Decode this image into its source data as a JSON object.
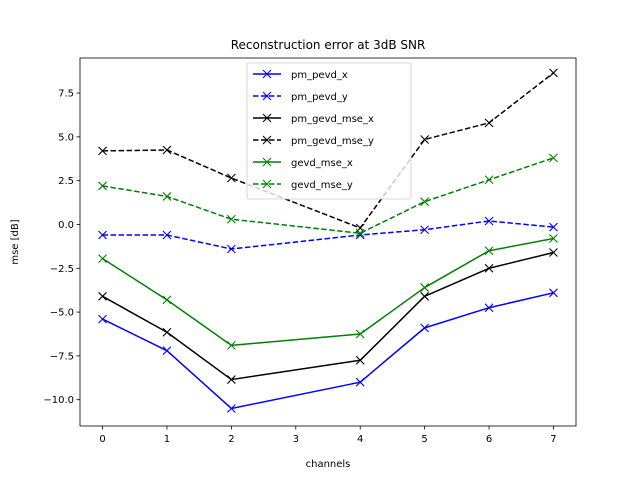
{
  "chart_data": {
    "type": "line",
    "title": "Reconstruction error at 3dB SNR",
    "xlabel": "channels",
    "ylabel": "mse [dB]",
    "x": [
      0,
      1,
      2,
      4,
      5,
      6,
      7
    ],
    "xlim": [
      -0.35,
      7.35
    ],
    "ylim": [
      -11.5,
      9.5
    ],
    "xticks": [
      0,
      1,
      2,
      3,
      4,
      5,
      6,
      7
    ],
    "yticks": [
      -10.0,
      -7.5,
      -5.0,
      -2.5,
      0.0,
      2.5,
      5.0,
      7.5
    ],
    "ytick_labels": [
      "−10.0",
      "−7.5",
      "−5.0",
      "−2.5",
      "0.0",
      "2.5",
      "5.0",
      "7.5"
    ],
    "grid": false,
    "legend_position": "top-center",
    "marker": "x",
    "series": [
      {
        "name": "pm_pevd_x",
        "color": "#0000ff",
        "dash": "solid",
        "values": [
          -5.4,
          -7.2,
          -10.5,
          -9.0,
          -5.9,
          -4.75,
          -3.9
        ]
      },
      {
        "name": "pm_pevd_y",
        "color": "#0000ff",
        "dash": "dashed",
        "values": [
          -0.6,
          -0.6,
          -1.4,
          -0.6,
          -0.3,
          0.2,
          -0.15
        ]
      },
      {
        "name": "pm_gevd_mse_x",
        "color": "#000000",
        "dash": "solid",
        "values": [
          -4.1,
          -6.15,
          -8.85,
          -7.75,
          -4.1,
          -2.5,
          -1.6
        ]
      },
      {
        "name": "pm_gevd_mse_y",
        "color": "#000000",
        "dash": "dashed",
        "values": [
          4.2,
          4.25,
          2.65,
          -0.2,
          4.85,
          5.8,
          8.65
        ]
      },
      {
        "name": "gevd_mse_x",
        "color": "#008000",
        "dash": "solid",
        "values": [
          -1.95,
          -4.3,
          -6.9,
          -6.25,
          -3.6,
          -1.5,
          -0.8
        ]
      },
      {
        "name": "gevd_mse_y",
        "color": "#008000",
        "dash": "dashed",
        "values": [
          2.2,
          1.6,
          0.3,
          -0.5,
          1.3,
          2.55,
          3.8
        ]
      }
    ]
  }
}
